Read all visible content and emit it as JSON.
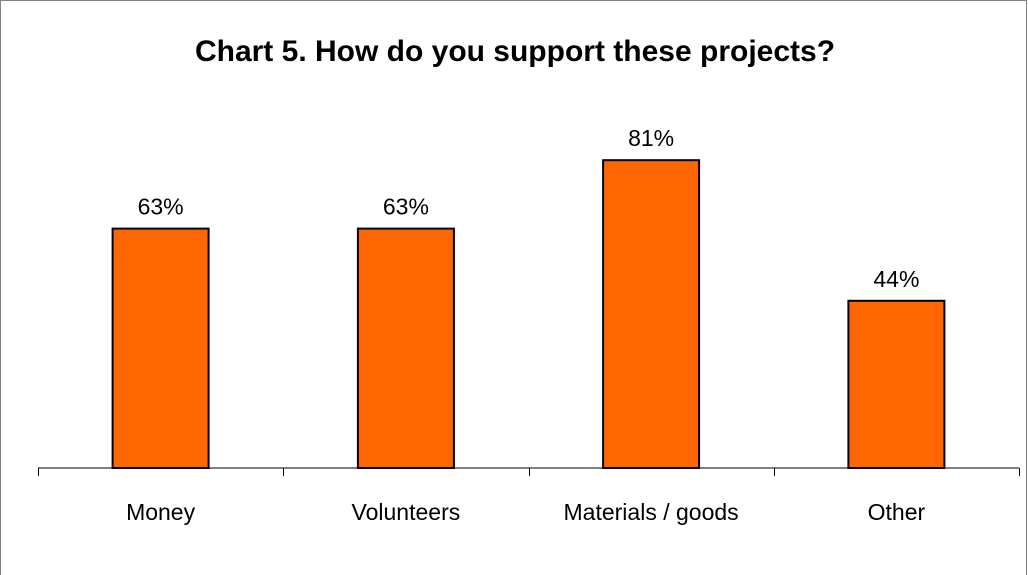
{
  "chart_data": {
    "type": "bar",
    "title": "Chart 5. How do you support these projects?",
    "categories": [
      "Money",
      "Volunteers",
      "Materials / goods",
      "Other"
    ],
    "values": [
      63,
      63,
      81,
      44
    ],
    "value_labels": [
      "63%",
      "63%",
      "81%",
      "44%"
    ],
    "ylim": [
      0,
      100
    ],
    "grid": false,
    "legend": "none",
    "bar_color": "#FF6600",
    "bar_outline_color": "#000000"
  }
}
